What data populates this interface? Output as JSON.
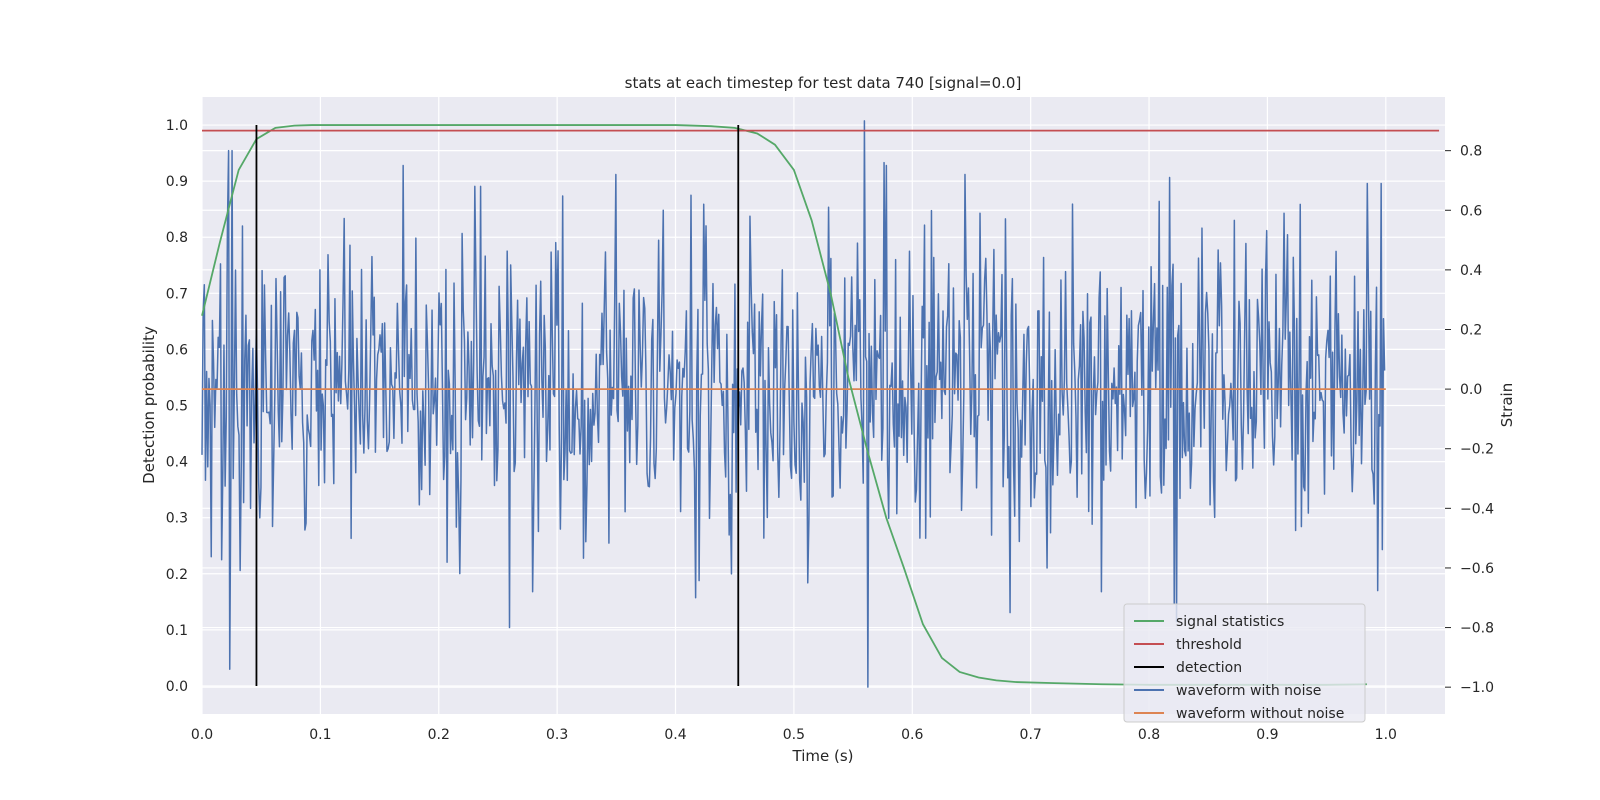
{
  "chart_data": {
    "type": "line",
    "title": "stats at each timestep for test data 740 [signal=0.0]",
    "xlabel": "Time (s)",
    "ylabel": "Detection probability",
    "y2label": "Strain",
    "xlim": [
      0.0,
      1.05
    ],
    "ylim": [
      -0.05,
      1.05
    ],
    "y2lim": [
      -1.09,
      0.98
    ],
    "xticks": [
      0.0,
      0.1,
      0.2,
      0.3,
      0.4,
      0.5,
      0.6,
      0.7,
      0.8,
      0.9,
      1.0
    ],
    "xtick_labels": [
      "0.0",
      "0.1",
      "0.2",
      "0.3",
      "0.4",
      "0.5",
      "0.6",
      "0.7",
      "0.8",
      "0.9",
      "1.0"
    ],
    "yticks": [
      0.0,
      0.1,
      0.2,
      0.3,
      0.4,
      0.5,
      0.6,
      0.7,
      0.8,
      0.9,
      1.0
    ],
    "ytick_labels": [
      "0.0",
      "0.1",
      "0.2",
      "0.3",
      "0.4",
      "0.5",
      "0.6",
      "0.7",
      "0.8",
      "0.9",
      "1.0"
    ],
    "y2ticks": [
      -1.0,
      -0.8,
      -0.6,
      -0.4,
      -0.2,
      0.0,
      0.2,
      0.4,
      0.6,
      0.8
    ],
    "y2tick_labels": [
      "−1.0",
      "−0.8",
      "−0.6",
      "−0.4",
      "−0.2",
      "0.0",
      "0.2",
      "0.4",
      "0.6",
      "0.8"
    ],
    "grid": true,
    "legend_position": "lower-right",
    "colors": {
      "background": "#EAEAF2",
      "grid": "#ffffff",
      "signal_statistics": "#55A868",
      "threshold": "#C44E52",
      "detection": "#000000",
      "waveform_with_noise": "#4C72B0",
      "waveform_without_noise": "#DD8452"
    },
    "series": [
      {
        "name": "signal statistics",
        "axis": "left",
        "x": [
          0.0,
          0.015,
          0.031,
          0.046,
          0.062,
          0.078,
          0.093,
          0.109,
          0.125,
          0.2,
          0.3,
          0.4,
          0.43,
          0.45,
          0.469,
          0.484,
          0.5,
          0.515,
          0.531,
          0.546,
          0.562,
          0.578,
          0.593,
          0.609,
          0.625,
          0.64,
          0.656,
          0.671,
          0.687,
          0.72,
          0.76,
          0.8,
          0.85,
          0.9,
          0.95,
          0.984
        ],
        "values": [
          0.66,
          0.79,
          0.92,
          0.975,
          0.995,
          0.999,
          1.0,
          1.0,
          1.0,
          1.0,
          1.0,
          1.0,
          0.998,
          0.995,
          0.985,
          0.965,
          0.92,
          0.83,
          0.7,
          0.55,
          0.42,
          0.3,
          0.21,
          0.11,
          0.05,
          0.025,
          0.015,
          0.01,
          0.007,
          0.005,
          0.003,
          0.002,
          0.002,
          0.002,
          0.002,
          0.003
        ]
      },
      {
        "name": "threshold",
        "axis": "left",
        "x": [
          0.0,
          1.045
        ],
        "values": [
          0.99,
          0.99
        ]
      },
      {
        "name": "detection",
        "axis": "left",
        "type": "vlines",
        "x": [
          0.046,
          0.453
        ],
        "ymin": 0.0,
        "ymax": 1.0
      },
      {
        "name": "waveform with noise",
        "axis": "right",
        "type": "noise",
        "n": 1024,
        "x_range": [
          0.0,
          0.999
        ],
        "std": 0.24,
        "min": -1.0,
        "max": 0.9,
        "spikes": [
          [
            0.002,
            0.35
          ],
          [
            0.015,
            0.14
          ],
          [
            0.0156,
            0.42
          ],
          [
            0.0215,
            0.55
          ],
          [
            0.0225,
            0.8
          ],
          [
            0.0235,
            0.35
          ],
          [
            0.025,
            0.8
          ],
          [
            0.0265,
            -0.3
          ],
          [
            0.0235,
            -0.94
          ],
          [
            0.041,
            -0.4
          ],
          [
            0.046,
            0.2
          ],
          [
            0.05,
            -0.33
          ],
          [
            0.07,
            0.38
          ],
          [
            0.088,
            -0.45
          ],
          [
            0.1,
            0.4
          ],
          [
            0.17,
            0.75
          ],
          [
            0.26,
            -0.8
          ],
          [
            0.279,
            -0.68
          ],
          [
            0.35,
            0.72
          ],
          [
            0.39,
            0.6
          ],
          [
            0.424,
            0.62
          ],
          [
            0.463,
            0.58
          ],
          [
            0.475,
            -0.5
          ],
          [
            0.512,
            -0.65
          ],
          [
            0.529,
            0.61
          ],
          [
            0.56,
            0.9
          ],
          [
            0.5625,
            -1.0
          ],
          [
            0.576,
            0.76
          ],
          [
            0.578,
            0.75
          ],
          [
            0.61,
            0.55
          ],
          [
            0.645,
            0.72
          ],
          [
            0.657,
            0.59
          ],
          [
            0.683,
            -0.75
          ],
          [
            0.714,
            -0.6
          ],
          [
            0.76,
            -0.68
          ],
          [
            0.809,
            0.63
          ],
          [
            0.817,
            0.71
          ],
          [
            0.8215,
            -0.72
          ],
          [
            0.823,
            -0.78
          ],
          [
            0.836,
            -0.25
          ],
          [
            0.914,
            0.59
          ],
          [
            0.9845,
            0.69
          ],
          [
            0.9965,
            0.69
          ]
        ]
      },
      {
        "name": "waveform without noise",
        "axis": "right",
        "x": [
          0.0,
          1.0
        ],
        "values": [
          0.0,
          0.0
        ]
      }
    ],
    "legend": [
      "signal statistics",
      "threshold",
      "detection",
      "waveform with noise",
      "waveform without noise"
    ]
  }
}
